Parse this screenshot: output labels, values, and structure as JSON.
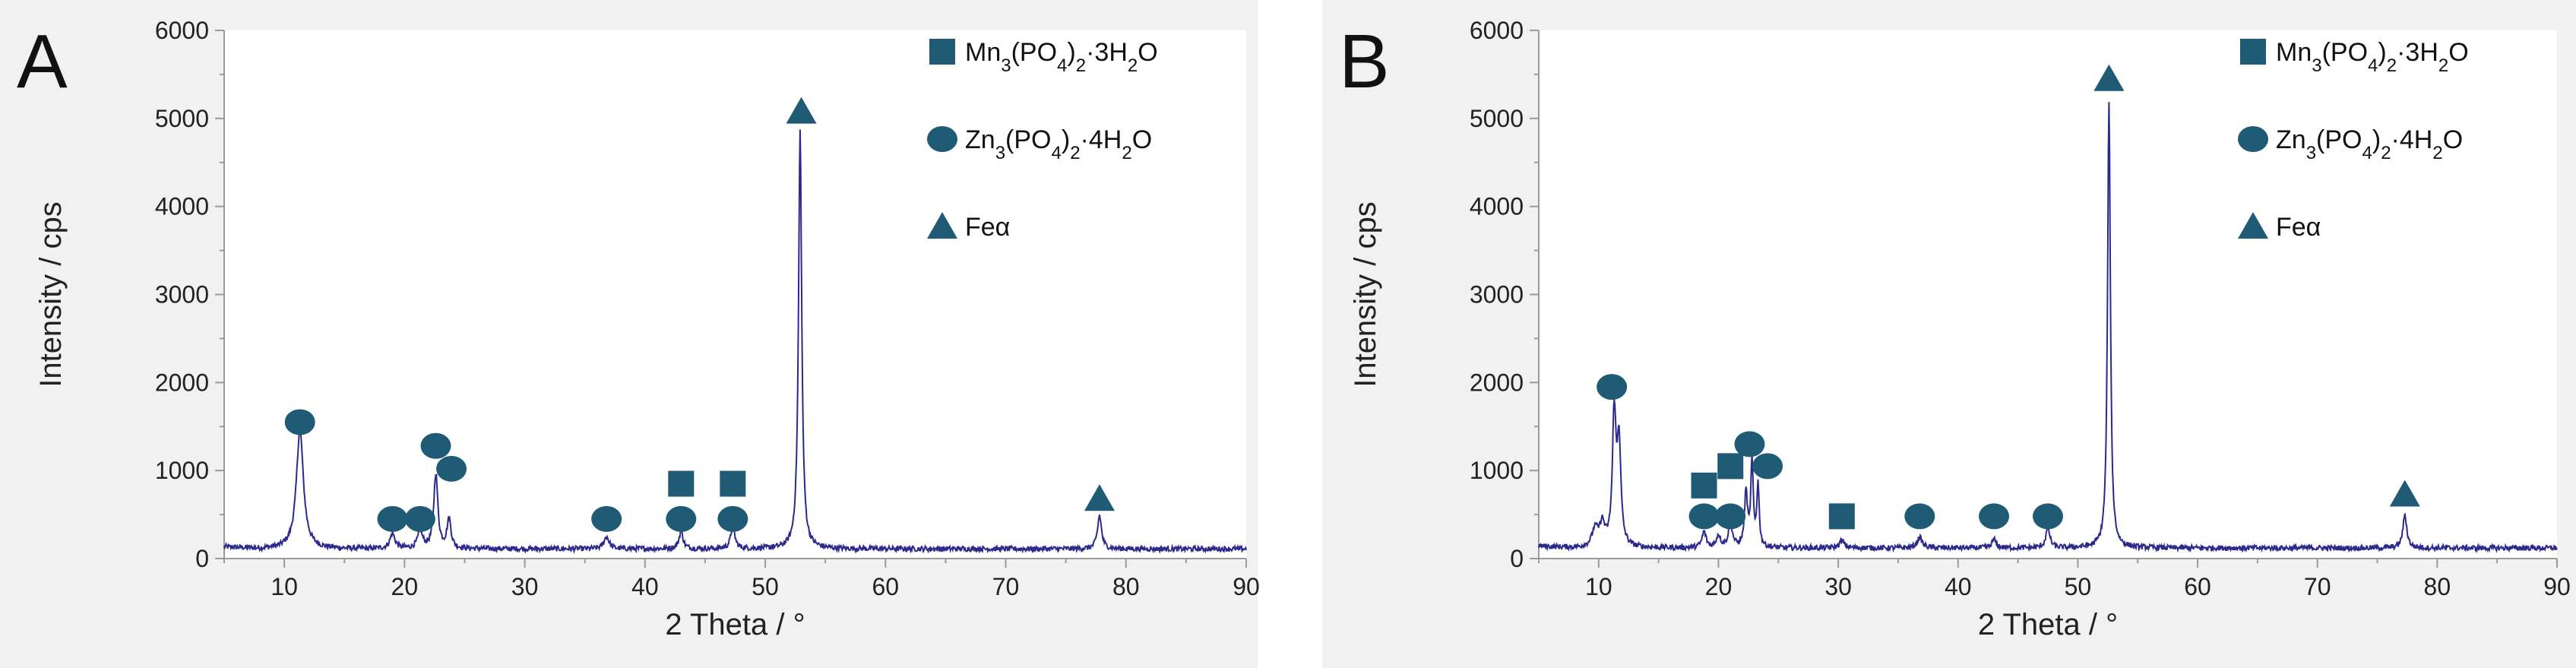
{
  "chart_data": [
    {
      "type": "line",
      "panel_label": "A",
      "title": "",
      "xlabel": "2 Theta / °",
      "ylabel": "Intensity / cps",
      "xlim": [
        5,
        90
      ],
      "ylim": [
        0,
        6000
      ],
      "xticks": [
        10,
        20,
        30,
        40,
        50,
        60,
        70,
        80,
        90
      ],
      "yticks": [
        0,
        1000,
        2000,
        3000,
        4000,
        5000,
        6000
      ],
      "grid": false,
      "legend_position": "top-right",
      "baseline": 110,
      "peaks": [
        {
          "x": 11.3,
          "y": 1350,
          "w": 0.35
        },
        {
          "x": 19.0,
          "y": 170,
          "w": 0.25
        },
        {
          "x": 21.3,
          "y": 190,
          "w": 0.25
        },
        {
          "x": 22.6,
          "y": 850,
          "w": 0.2
        },
        {
          "x": 23.7,
          "y": 330,
          "w": 0.2
        },
        {
          "x": 36.8,
          "y": 140,
          "w": 0.25
        },
        {
          "x": 43.0,
          "y": 200,
          "w": 0.2
        },
        {
          "x": 47.3,
          "y": 260,
          "w": 0.2
        },
        {
          "x": 52.9,
          "y": 4750,
          "w": 0.16
        },
        {
          "x": 77.8,
          "y": 380,
          "w": 0.2
        }
      ],
      "markers": [
        {
          "x": 11.3,
          "y": 1550,
          "phase": "zn"
        },
        {
          "x": 19.0,
          "y": 450,
          "phase": "zn"
        },
        {
          "x": 21.3,
          "y": 450,
          "phase": "zn"
        },
        {
          "x": 22.6,
          "y": 1280,
          "phase": "zn"
        },
        {
          "x": 23.9,
          "y": 1020,
          "phase": "zn"
        },
        {
          "x": 36.8,
          "y": 450,
          "phase": "zn"
        },
        {
          "x": 43.0,
          "y": 450,
          "phase": "zn"
        },
        {
          "x": 47.3,
          "y": 450,
          "phase": "zn"
        },
        {
          "x": 43.0,
          "y": 850,
          "phase": "mn"
        },
        {
          "x": 47.3,
          "y": 850,
          "phase": "mn"
        },
        {
          "x": 53.0,
          "y": 5080,
          "phase": "fe"
        },
        {
          "x": 77.8,
          "y": 680,
          "phase": "fe"
        }
      ]
    },
    {
      "type": "line",
      "panel_label": "B",
      "title": "",
      "xlabel": "2 Theta / °",
      "ylabel": "Intensity / cps",
      "xlim": [
        5,
        90
      ],
      "ylim": [
        0,
        6000
      ],
      "xticks": [
        10,
        20,
        30,
        40,
        50,
        60,
        70,
        80,
        90
      ],
      "yticks": [
        0,
        1000,
        2000,
        3000,
        4000,
        5000,
        6000
      ],
      "grid": false,
      "legend_position": "top-right",
      "baseline": 120,
      "peaks": [
        {
          "x": 9.7,
          "y": 200,
          "w": 0.3
        },
        {
          "x": 10.3,
          "y": 250,
          "w": 0.25
        },
        {
          "x": 11.3,
          "y": 1500,
          "w": 0.18
        },
        {
          "x": 11.7,
          "y": 1150,
          "w": 0.18
        },
        {
          "x": 18.8,
          "y": 180,
          "w": 0.2
        },
        {
          "x": 20.0,
          "y": 140,
          "w": 0.2
        },
        {
          "x": 21.0,
          "y": 280,
          "w": 0.2
        },
        {
          "x": 22.3,
          "y": 620,
          "w": 0.15
        },
        {
          "x": 22.8,
          "y": 950,
          "w": 0.12
        },
        {
          "x": 23.3,
          "y": 700,
          "w": 0.12
        },
        {
          "x": 30.3,
          "y": 80,
          "w": 0.25
        },
        {
          "x": 36.8,
          "y": 120,
          "w": 0.25
        },
        {
          "x": 43.0,
          "y": 100,
          "w": 0.2
        },
        {
          "x": 47.5,
          "y": 230,
          "w": 0.2
        },
        {
          "x": 52.6,
          "y": 5050,
          "w": 0.14
        },
        {
          "x": 77.3,
          "y": 370,
          "w": 0.2
        }
      ],
      "markers": [
        {
          "x": 11.1,
          "y": 1950,
          "phase": "zn"
        },
        {
          "x": 18.8,
          "y": 830,
          "phase": "mn"
        },
        {
          "x": 21.0,
          "y": 1050,
          "phase": "mn"
        },
        {
          "x": 18.8,
          "y": 480,
          "phase": "zn"
        },
        {
          "x": 21.0,
          "y": 480,
          "phase": "zn"
        },
        {
          "x": 22.6,
          "y": 1300,
          "phase": "zn"
        },
        {
          "x": 24.1,
          "y": 1050,
          "phase": "zn"
        },
        {
          "x": 30.3,
          "y": 480,
          "phase": "mn"
        },
        {
          "x": 36.8,
          "y": 480,
          "phase": "zn"
        },
        {
          "x": 43.0,
          "y": 480,
          "phase": "zn"
        },
        {
          "x": 47.5,
          "y": 480,
          "phase": "zn"
        },
        {
          "x": 52.6,
          "y": 5450,
          "phase": "fe"
        },
        {
          "x": 77.3,
          "y": 730,
          "phase": "fe"
        }
      ]
    }
  ],
  "legend": {
    "mn": {
      "base": "Mn",
      "s1": "3",
      "mid": "(PO",
      "s2": "4",
      "mid2": ")",
      "s3": "2",
      "tail": "·3H",
      "s4": "2",
      "end": "O"
    },
    "zn": {
      "base": "Zn",
      "s1": "3",
      "mid": "(PO",
      "s2": "4",
      "mid2": ")",
      "s3": "2",
      "tail": "·4H",
      "s4": "2",
      "end": "O"
    },
    "fe": {
      "label": "Feα"
    }
  },
  "colors": {
    "marker": "#1f5b74",
    "line": "#2b2a8c",
    "axis": "#9a9a9a",
    "panel_bg": "#f1f1f1"
  }
}
